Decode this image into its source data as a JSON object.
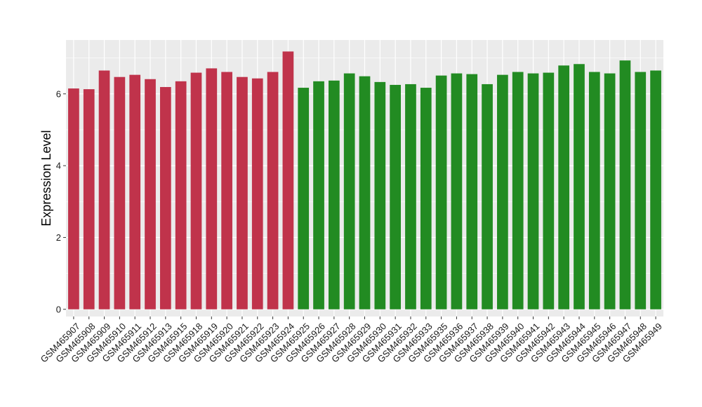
{
  "chart_data": {
    "type": "bar",
    "title": "",
    "xlabel": "",
    "ylabel": "Expression Level",
    "ylim": [
      -0.2,
      7.5
    ],
    "yticks": [
      0,
      2,
      4,
      6
    ],
    "grid": true,
    "legend": "none",
    "colors": {
      "group1": "#c0334b",
      "group2": "#228b22",
      "panel": "#ebebeb",
      "grid": "#ffffff"
    },
    "categories": [
      "GSM465907",
      "GSM465908",
      "GSM465909",
      "GSM465910",
      "GSM465911",
      "GSM465912",
      "GSM465913",
      "GSM465915",
      "GSM465918",
      "GSM465919",
      "GSM465920",
      "GSM465921",
      "GSM465922",
      "GSM465923",
      "GSM465924",
      "GSM465925",
      "GSM465926",
      "GSM465927",
      "GSM465928",
      "GSM465929",
      "GSM465930",
      "GSM465931",
      "GSM465932",
      "GSM465933",
      "GSM465935",
      "GSM465936",
      "GSM465937",
      "GSM465938",
      "GSM465939",
      "GSM465940",
      "GSM465941",
      "GSM465942",
      "GSM465943",
      "GSM465944",
      "GSM465945",
      "GSM465946",
      "GSM465947",
      "GSM465948",
      "GSM465949"
    ],
    "values": [
      6.15,
      6.13,
      6.65,
      6.47,
      6.53,
      6.41,
      6.19,
      6.35,
      6.59,
      6.71,
      6.61,
      6.47,
      6.43,
      6.61,
      7.18,
      6.17,
      6.35,
      6.37,
      6.57,
      6.49,
      6.33,
      6.25,
      6.27,
      6.17,
      6.51,
      6.57,
      6.55,
      6.27,
      6.53,
      6.61,
      6.57,
      6.59,
      6.79,
      6.83,
      6.61,
      6.57,
      6.93,
      6.61,
      6.65
    ],
    "groups": [
      1,
      1,
      1,
      1,
      1,
      1,
      1,
      1,
      1,
      1,
      1,
      1,
      1,
      1,
      1,
      2,
      2,
      2,
      2,
      2,
      2,
      2,
      2,
      2,
      2,
      2,
      2,
      2,
      2,
      2,
      2,
      2,
      2,
      2,
      2,
      2,
      2,
      2,
      2
    ]
  }
}
